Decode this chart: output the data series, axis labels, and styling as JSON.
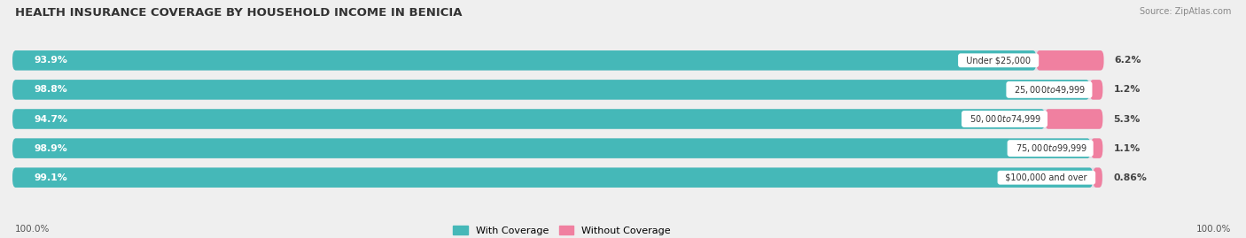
{
  "title": "HEALTH INSURANCE COVERAGE BY HOUSEHOLD INCOME IN BENICIA",
  "source": "Source: ZipAtlas.com",
  "categories": [
    "Under $25,000",
    "$25,000 to $49,999",
    "$50,000 to $74,999",
    "$75,000 to $99,999",
    "$100,000 and over"
  ],
  "with_coverage": [
    93.9,
    98.8,
    94.7,
    98.9,
    99.1
  ],
  "without_coverage": [
    6.2,
    1.2,
    5.3,
    1.1,
    0.86
  ],
  "with_coverage_labels": [
    "93.9%",
    "98.8%",
    "94.7%",
    "98.9%",
    "99.1%"
  ],
  "without_coverage_labels": [
    "6.2%",
    "1.2%",
    "5.3%",
    "1.1%",
    "0.86%"
  ],
  "axis_label_left": "100.0%",
  "axis_label_right": "100.0%",
  "color_with": "#45B8B8",
  "color_without": "#F080A0",
  "color_label_bg": "#FFFFFF",
  "background_color": "#EFEFEF",
  "bar_background": "#E0E0E8",
  "legend_with": "With Coverage",
  "legend_without": "Without Coverage",
  "title_fontsize": 9.5,
  "bar_height": 0.68,
  "figsize": [
    14.06,
    2.69
  ],
  "dpi": 100,
  "total_bar_pct": 100.0,
  "xlim_max": 112.0
}
